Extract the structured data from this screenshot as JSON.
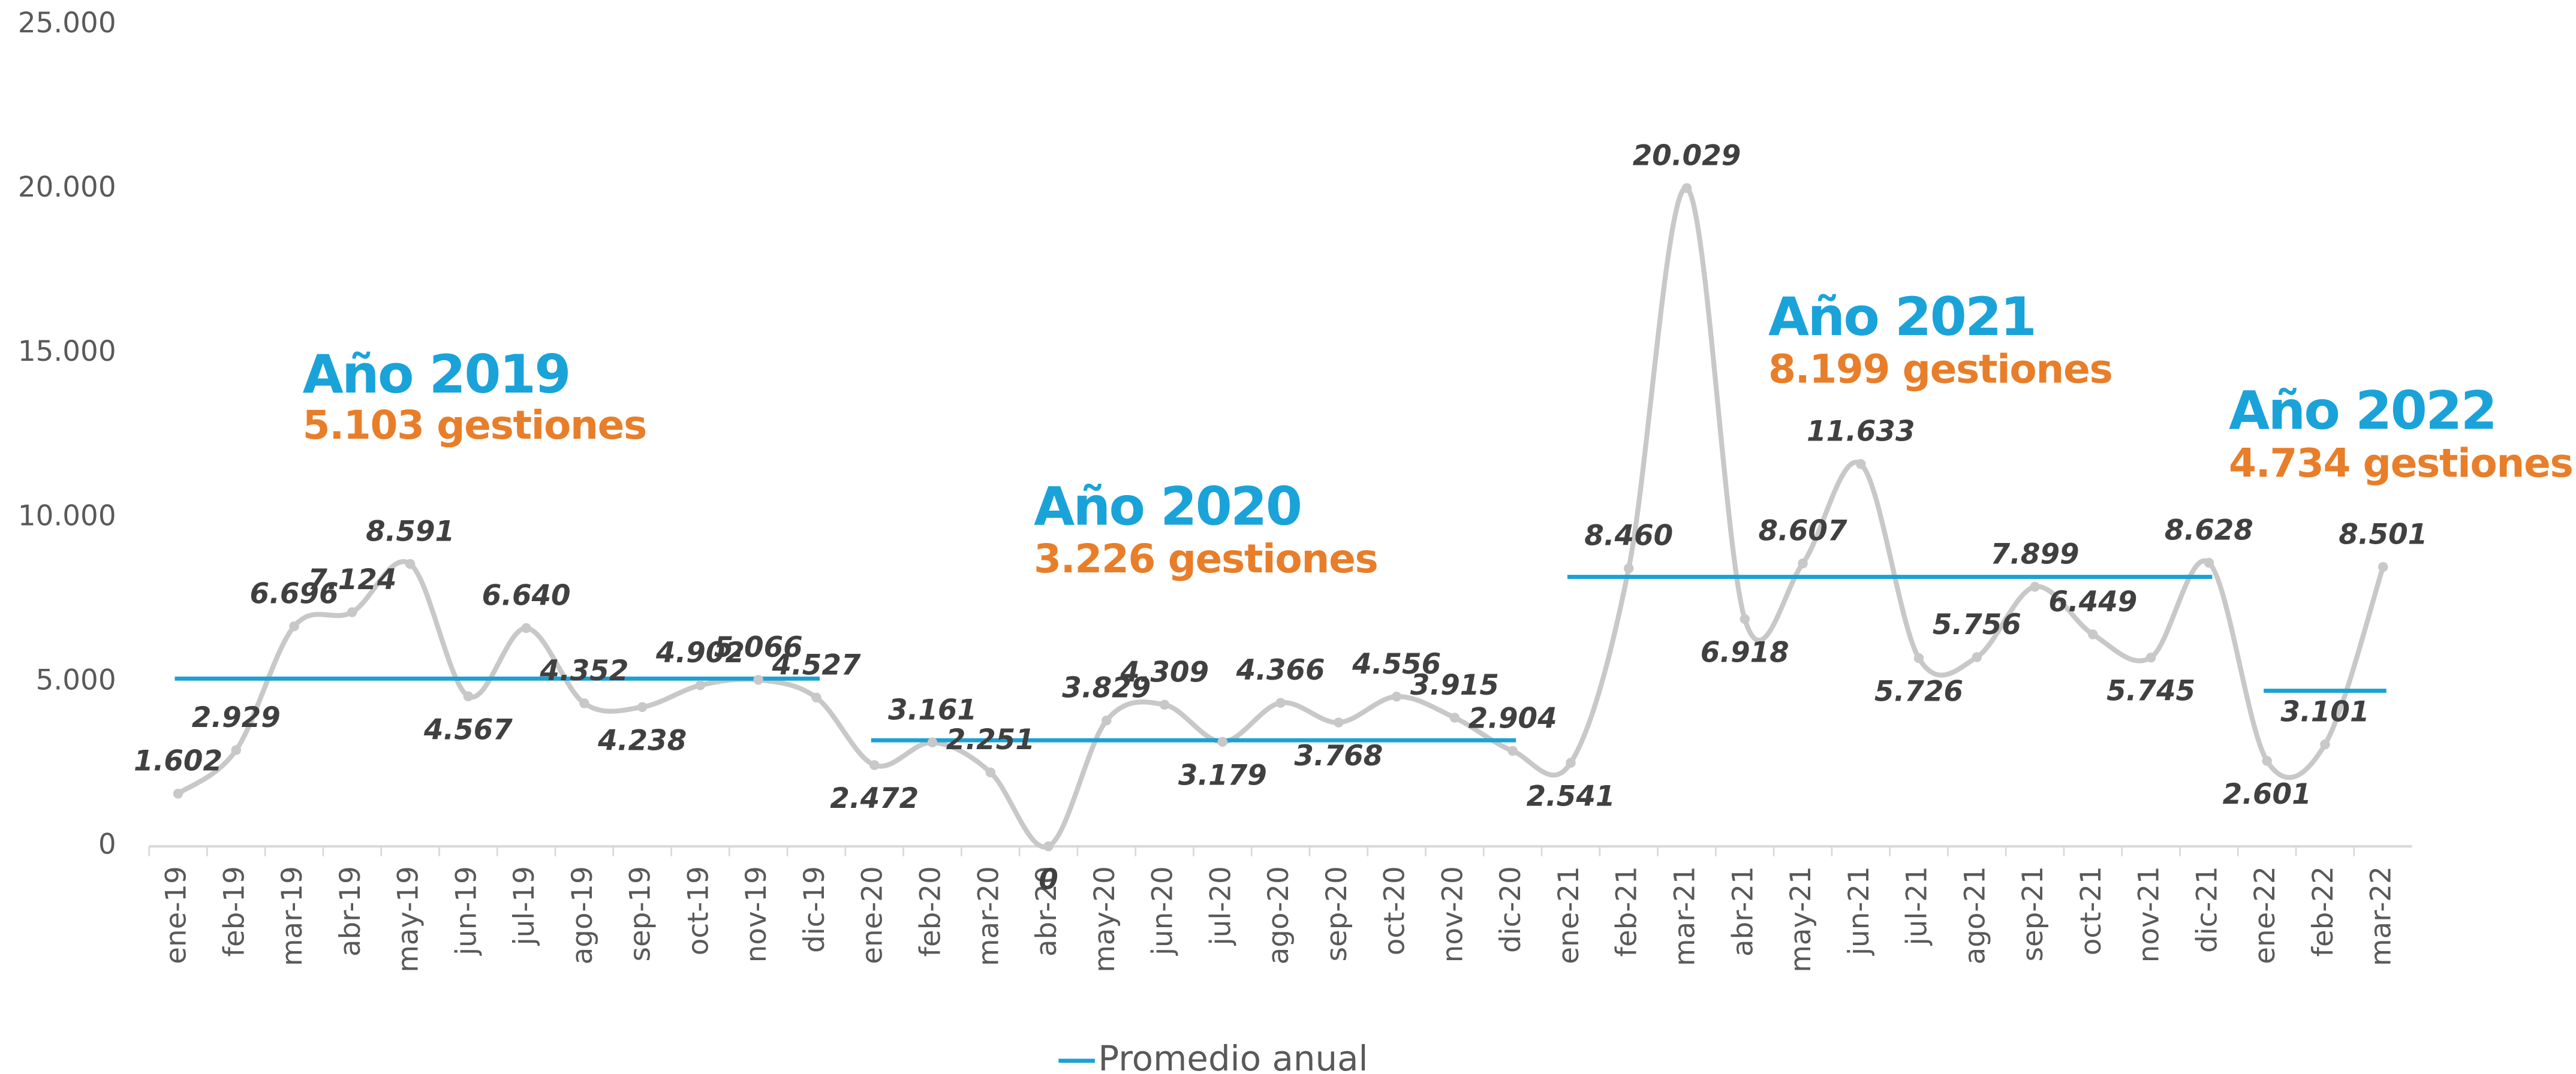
{
  "chart_data": {
    "type": "line",
    "categories": [
      "ene-19",
      "feb-19",
      "mar-19",
      "abr-19",
      "may-19",
      "jun-19",
      "jul-19",
      "ago-19",
      "sep-19",
      "oct-19",
      "nov-19",
      "dic-19",
      "ene-20",
      "feb-20",
      "mar-20",
      "abr-20",
      "may-20",
      "jun-20",
      "jul-20",
      "ago-20",
      "sep-20",
      "oct-20",
      "nov-20",
      "dic-20",
      "ene-21",
      "feb-21",
      "mar-21",
      "abr-21",
      "may-21",
      "jun-21",
      "jul-21",
      "ago-21",
      "sep-21",
      "oct-21",
      "nov-21",
      "dic-21",
      "ene-22",
      "feb-22",
      "mar-22"
    ],
    "series": [
      {
        "color": "#c8c8c8",
        "values": [
          1602,
          2929,
          6696,
          7124,
          8591,
          4567,
          6640,
          4352,
          4238,
          4902,
          5066,
          4527,
          2472,
          3161,
          2251,
          0,
          3829,
          4309,
          3179,
          4366,
          3768,
          4556,
          3915,
          2904,
          2541,
          8460,
          20029,
          6918,
          8607,
          11633,
          5726,
          5756,
          7899,
          6449,
          5745,
          8628,
          2601,
          3101,
          8501
        ],
        "value_labels": [
          "1.602",
          "2.929",
          "6.696",
          "7.124",
          "8.591",
          "4.567",
          "6.640",
          "4.352",
          "4.238",
          "4.902",
          "5.066",
          "4.527",
          "2.472",
          "3.161",
          "2.251",
          "0",
          "3.829",
          "4.309",
          "3.179",
          "4.366",
          "3.768",
          "4.556",
          "3.915",
          "2.904",
          "2.541",
          "8.460",
          "20.029",
          "6.918",
          "8.607",
          "11.633",
          "5.726",
          "5.756",
          "7.899",
          "6.449",
          "5.745",
          "8.628",
          "2.601",
          "3.101",
          "8.501"
        ]
      },
      {
        "name": "Promedio anual",
        "color": "#1ba1d4",
        "values": [
          5103,
          5103,
          5103,
          5103,
          5103,
          5103,
          5103,
          5103,
          5103,
          5103,
          5103,
          5103,
          3226,
          3226,
          3226,
          3226,
          3226,
          3226,
          3226,
          3226,
          3226,
          3226,
          3226,
          3226,
          8199,
          8199,
          8199,
          8199,
          8199,
          8199,
          8199,
          8199,
          8199,
          8199,
          8199,
          8199,
          4734,
          4734,
          4734
        ]
      }
    ],
    "annotations": [
      {
        "title": "Año 2019",
        "text": "5.103 gestiones"
      },
      {
        "title": "Año 2020",
        "text": "3.226 gestiones"
      },
      {
        "title": "Año 2021",
        "text": "8.199 gestiones"
      },
      {
        "title": "Año 2022",
        "text": "4.734 gestiones"
      }
    ],
    "ylim": [
      0,
      25000
    ],
    "yticks": [
      {
        "value": 0,
        "label": "0"
      },
      {
        "value": 5000,
        "label": "5.000"
      },
      {
        "value": 10000,
        "label": "10.000"
      },
      {
        "value": 15000,
        "label": "15.000"
      },
      {
        "value": 20000,
        "label": "20.000"
      },
      {
        "value": 25000,
        "label": "25.000"
      }
    ],
    "legend": "bottom"
  }
}
